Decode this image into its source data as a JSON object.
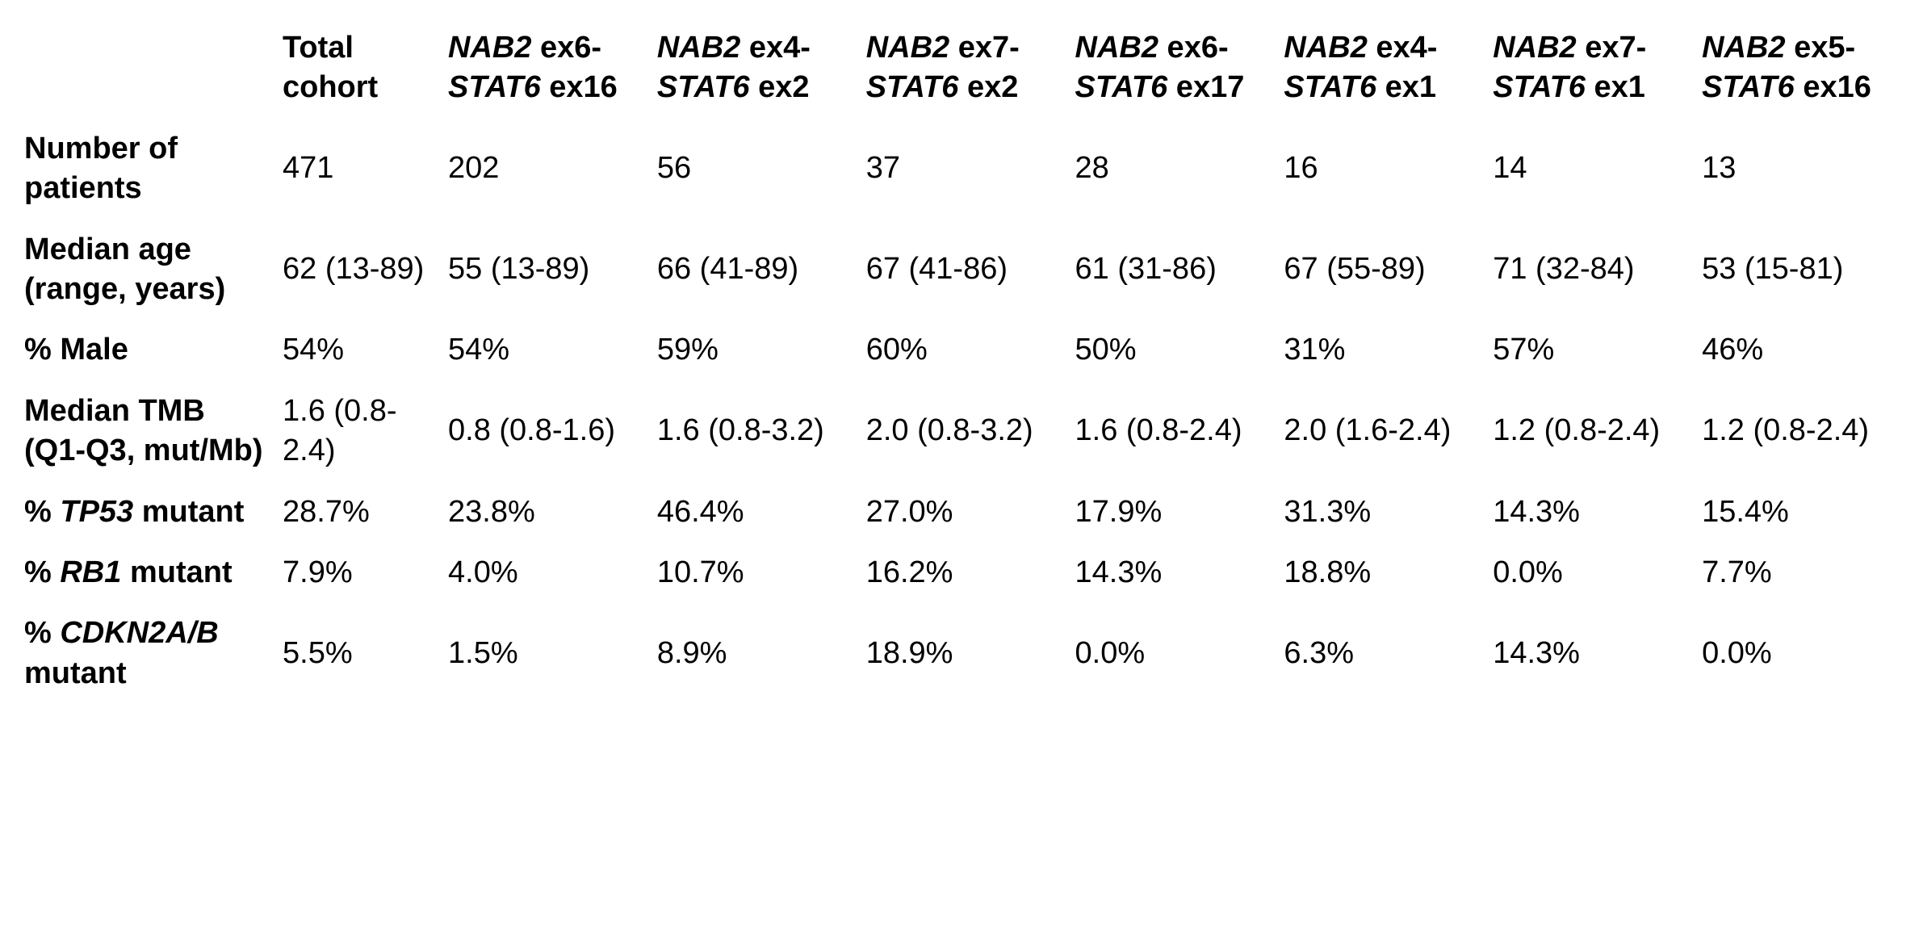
{
  "table": {
    "columns": [
      {
        "segments": []
      },
      {
        "segments": [
          {
            "t": "Total cohort",
            "i": false
          }
        ]
      },
      {
        "segments": [
          {
            "t": "NAB2",
            "i": true
          },
          {
            "t": " ex6-",
            "i": false
          },
          {
            "t": "STAT6",
            "i": true
          },
          {
            "t": " ex16",
            "i": false
          }
        ]
      },
      {
        "segments": [
          {
            "t": "NAB2",
            "i": true
          },
          {
            "t": " ex4-",
            "i": false
          },
          {
            "t": "STAT6",
            "i": true
          },
          {
            "t": " ex2",
            "i": false
          }
        ]
      },
      {
        "segments": [
          {
            "t": "NAB2",
            "i": true
          },
          {
            "t": " ex7-",
            "i": false
          },
          {
            "t": "STAT6",
            "i": true
          },
          {
            "t": " ex2",
            "i": false
          }
        ]
      },
      {
        "segments": [
          {
            "t": "NAB2",
            "i": true
          },
          {
            "t": " ex6-",
            "i": false
          },
          {
            "t": "STAT6",
            "i": true
          },
          {
            "t": " ex17",
            "i": false
          }
        ]
      },
      {
        "segments": [
          {
            "t": "NAB2",
            "i": true
          },
          {
            "t": " ex4-",
            "i": false
          },
          {
            "t": "STAT6",
            "i": true
          },
          {
            "t": " ex1",
            "i": false
          }
        ]
      },
      {
        "segments": [
          {
            "t": "NAB2",
            "i": true
          },
          {
            "t": " ex7-",
            "i": false
          },
          {
            "t": "STAT6",
            "i": true
          },
          {
            "t": " ex1",
            "i": false
          }
        ]
      },
      {
        "segments": [
          {
            "t": "NAB2",
            "i": true
          },
          {
            "t": " ex5-",
            "i": false
          },
          {
            "t": "STAT6",
            "i": true
          },
          {
            "t": " ex16",
            "i": false
          }
        ]
      }
    ],
    "rows": [
      {
        "label": [
          {
            "t": "Number of patients",
            "i": false
          }
        ],
        "values": [
          "471",
          "202",
          "56",
          "37",
          "28",
          "16",
          "14",
          "13"
        ]
      },
      {
        "label": [
          {
            "t": "Median age (range, years)",
            "i": false
          }
        ],
        "values": [
          "62 (13-89)",
          "55 (13-89)",
          "66 (41-89)",
          "67 (41-86)",
          "61 (31-86)",
          "67 (55-89)",
          "71 (32-84)",
          "53 (15-81)"
        ]
      },
      {
        "label": [
          {
            "t": "% Male",
            "i": false
          }
        ],
        "values": [
          "54%",
          "54%",
          "59%",
          "60%",
          "50%",
          "31%",
          "57%",
          "46%"
        ]
      },
      {
        "label": [
          {
            "t": "Median TMB (Q1-Q3, mut/Mb)",
            "i": false
          }
        ],
        "values": [
          "1.6 (0.8-2.4)",
          "0.8 (0.8-1.6)",
          "1.6 (0.8-3.2)",
          "2.0 (0.8-3.2)",
          "1.6 (0.8-2.4)",
          "2.0 (1.6-2.4)",
          "1.2 (0.8-2.4)",
          "1.2 (0.8-2.4)"
        ]
      },
      {
        "label": [
          {
            "t": "% ",
            "i": false
          },
          {
            "t": "TP53",
            "i": true
          },
          {
            "t": " mutant",
            "i": false
          }
        ],
        "values": [
          "28.7%",
          "23.8%",
          "46.4%",
          "27.0%",
          "17.9%",
          "31.3%",
          "14.3%",
          "15.4%"
        ]
      },
      {
        "label": [
          {
            "t": "% ",
            "i": false
          },
          {
            "t": "RB1",
            "i": true
          },
          {
            "t": " mutant",
            "i": false
          }
        ],
        "values": [
          "7.9%",
          "4.0%",
          "10.7%",
          "16.2%",
          "14.3%",
          "18.8%",
          "0.0%",
          "7.7%"
        ]
      },
      {
        "label": [
          {
            "t": "% ",
            "i": false
          },
          {
            "t": "CDKN2A/B",
            "i": true
          },
          {
            "t": " mutant",
            "i": false
          }
        ],
        "values": [
          "5.5%",
          "1.5%",
          "8.9%",
          "18.9%",
          "0.0%",
          "6.3%",
          "14.3%",
          "0.0%"
        ]
      }
    ],
    "colors": {
      "background": "#ffffff",
      "text": "#000000"
    }
  }
}
